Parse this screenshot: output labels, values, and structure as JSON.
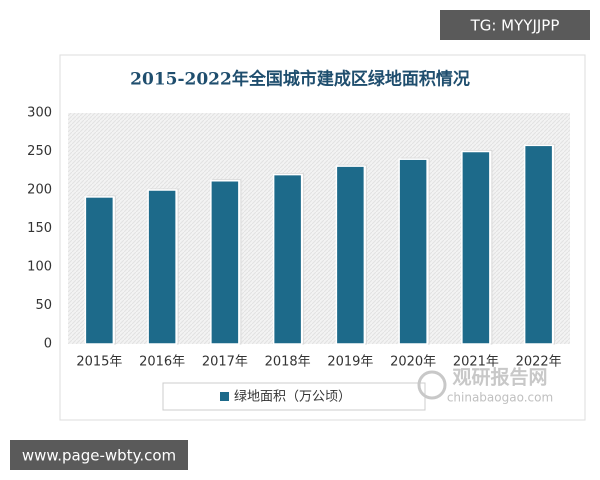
{
  "chart_data": {
    "type": "bar",
    "title": "2015-2022年全国城市建成区绿地面积情况",
    "categories": [
      "2015年",
      "2016年",
      "2017年",
      "2018年",
      "2019年",
      "2020年",
      "2021年",
      "2022年"
    ],
    "series": [
      {
        "name": "绿地面积（万公顷）",
        "color": "#1d6a8a",
        "values": [
          191,
          200,
          212,
          220,
          231,
          240,
          250,
          258
        ]
      }
    ],
    "ylim": [
      0,
      300
    ],
    "yticks": [
      0,
      50,
      100,
      150,
      200,
      250,
      300
    ],
    "grid": false,
    "legend": "bottom"
  },
  "watermarks": [
    "TG: MYYJJPP",
    "www.page-wbty.com",
    "观研报告网",
    "chinabaogao.com"
  ]
}
